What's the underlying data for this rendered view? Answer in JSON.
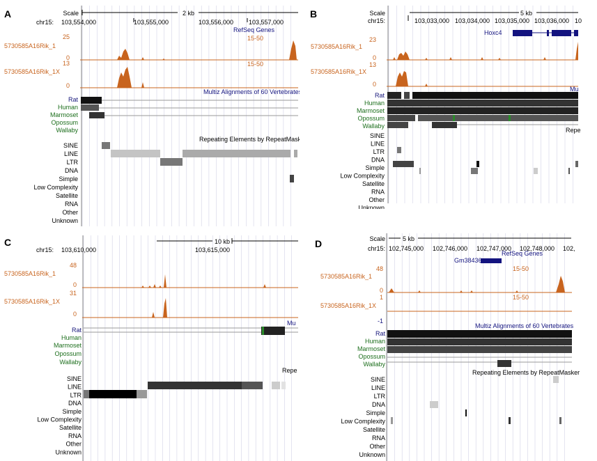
{
  "colors": {
    "signal": "#c8641e",
    "gene": "#13137f",
    "species_dark": "#14147a",
    "species_green": "#1c6e1c",
    "grid": "#d2d2e6"
  },
  "repeat_classes": [
    "SINE",
    "LINE",
    "LTR",
    "DNA",
    "Simple",
    "Low Complexity",
    "Satellite",
    "RNA",
    "Other",
    "Unknown"
  ],
  "panels": [
    {
      "id": "A",
      "letter": "A",
      "scale_label": "Scale",
      "scale_value": "2 kb",
      "chrom": "chr15:",
      "ticks": [
        "103,554,000",
        "103,555,000",
        "103,556,000",
        "103,557,000"
      ],
      "refseq_label": "RefSeq Genes",
      "gene_name": "",
      "tracks": [
        {
          "name": "5730585A16Rik_1",
          "max": "25",
          "min": "0",
          "range": "15-50"
        },
        {
          "name": "5730585A16Rik_1X",
          "max": "13",
          "min": "0",
          "range": "15-50"
        }
      ],
      "multiz_label": "Multiz Alignments of 60 Vertebrates",
      "species": [
        "Rat",
        "Human",
        "Marmoset",
        "Opossum",
        "Wallaby"
      ],
      "repeatmasker_label": "Repeating Elements by RepeatMasker"
    },
    {
      "id": "B",
      "letter": "B",
      "scale_label": "Scale",
      "scale_value": "5 kb",
      "chrom": "chr15:",
      "ticks": [
        "103,033,000",
        "103,034,000",
        "103,035,000",
        "103,036,000",
        "10"
      ],
      "refseq_label": "",
      "gene_name": "Hoxc4",
      "tracks": [
        {
          "name": "5730585A16Rik_1",
          "max": "23",
          "min": "0",
          "range": ""
        },
        {
          "name": "5730585A16Rik_1X",
          "max": "13",
          "min": "0",
          "range": ""
        }
      ],
      "multiz_label": "Mu",
      "species": [
        "Rat",
        "Human",
        "Marmoset",
        "Opossum",
        "Wallaby"
      ],
      "repeatmasker_label": "Repe"
    },
    {
      "id": "C",
      "letter": "C",
      "scale_label": "",
      "scale_value": "10 kb",
      "chrom": "chr15:",
      "ticks": [
        "103,610,000",
        "103,615,000"
      ],
      "refseq_label": "",
      "gene_name": "",
      "tracks": [
        {
          "name": "5730585A16Rik_1",
          "max": "48",
          "min": "0",
          "range": ""
        },
        {
          "name": "5730585A16Rik_1X",
          "max": "31",
          "min": "0",
          "range": ""
        }
      ],
      "multiz_label": "Mu",
      "species": [
        "Rat",
        "Human",
        "Marmoset",
        "Opossum",
        "Wallaby"
      ],
      "repeatmasker_label": "Repe"
    },
    {
      "id": "D",
      "letter": "D",
      "scale_label": "Scale",
      "scale_value": "5 kb",
      "chrom": "chr15:",
      "ticks": [
        "102,745,000",
        "102,746,000",
        "102,747,000",
        "102,748,000",
        "102,"
      ],
      "refseq_label": "RefSeq Genes",
      "gene_name": "Gm38436",
      "tracks": [
        {
          "name": "5730585A16Rik_1",
          "max": "48",
          "min": "0",
          "range": "15-50"
        },
        {
          "name": "5730585A16Rik_1X",
          "max": "1",
          "min": "-1",
          "range": "15-50"
        }
      ],
      "multiz_label": "Multiz Alignments of 60 Vertebrates",
      "species": [
        "Rat",
        "Human",
        "Marmoset",
        "Opossum",
        "Wallaby"
      ],
      "repeatmasker_label": "Repeating Elements by RepeatMasker"
    }
  ]
}
